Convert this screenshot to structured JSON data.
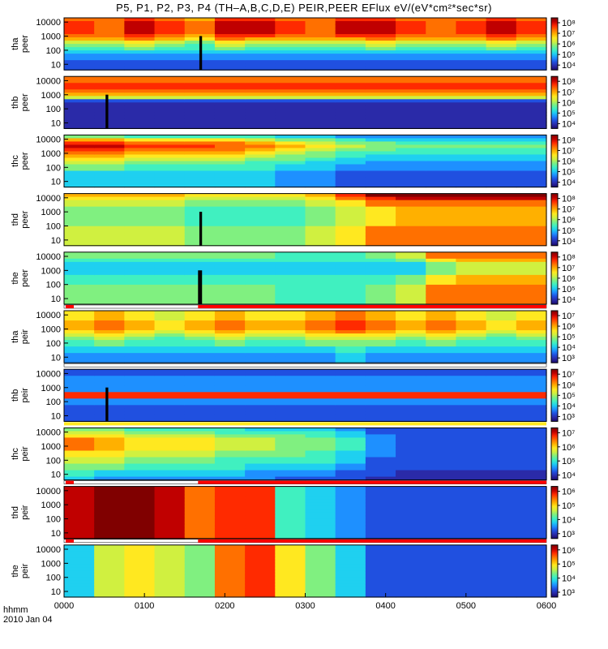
{
  "colors": {
    "background": "#ffffff",
    "axes": "#000000",
    "cmap": [
      "#1a0a6a",
      "#2a2aa8",
      "#2050e0",
      "#1e90ff",
      "#1fd0f0",
      "#40f0c0",
      "#80f080",
      "#d0f040",
      "#ffe820",
      "#ffb000",
      "#ff7000",
      "#ff2a00",
      "#c00000",
      "#800000"
    ],
    "bar_red": "#ff0000",
    "bar_white": "#ffffff",
    "bar_black": "#000000"
  },
  "chart_data": {
    "type": "heatmap",
    "title": "P5, P1, P2, P3, P4 (TH–A,B,C,D,E) PEIR,PEER EFlux eV/(eV*cm²*sec*sr)",
    "x_ticks": [
      "0000",
      "0100",
      "0200",
      "0300",
      "0400",
      "0500",
      "0600"
    ],
    "x_range_minutes": [
      0,
      360
    ],
    "x_label": "hhmm",
    "date_label": "2010 Jan 04",
    "y_scale": "log",
    "panels": [
      {
        "id": "tha-peer",
        "sc": "tha",
        "species": "peer",
        "ylabel_sc": "tha",
        "ylabel_sp": "peer",
        "yticks": [
          "10000",
          "1000",
          "100",
          "10"
        ],
        "cbar_ticks": [
          "10⁸",
          "10⁷",
          "10⁶",
          "10⁵",
          "10⁴"
        ],
        "profile": [
          10,
          11,
          11,
          11,
          11,
          10,
          9,
          7,
          6,
          5,
          4,
          3,
          3,
          2,
          2,
          2
        ],
        "time_var": [
          1,
          0.95,
          1.1,
          1,
          0.9,
          1.1,
          1.05,
          1,
          0.95,
          1.05,
          1.1,
          1,
          0.95,
          1,
          1.1,
          1
        ],
        "gap_minutes": [
          [
            101,
            103
          ]
        ],
        "bar": null
      },
      {
        "id": "thb-peer",
        "sc": "thb",
        "species": "peer",
        "ylabel_sc": "thb",
        "ylabel_sp": "peer",
        "yticks": [
          "10000",
          "1000",
          "100",
          "10"
        ],
        "cbar_ticks": [
          "10⁸",
          "10⁷",
          "10⁶",
          "10⁵",
          "10⁴"
        ],
        "profile": [
          10,
          10,
          11,
          11,
          10,
          9,
          7,
          2,
          1,
          1,
          1,
          1,
          1,
          1,
          1,
          1
        ],
        "time_var": [
          1,
          1,
          1,
          1,
          1,
          1,
          1,
          1,
          1,
          1,
          1,
          1,
          1,
          1,
          1,
          1
        ],
        "gap_minutes": [
          [
            31,
            33
          ]
        ],
        "bar": null
      },
      {
        "id": "thc-peer",
        "sc": "thc",
        "species": "peer",
        "ylabel_sc": "thc",
        "ylabel_sp": "peer",
        "yticks": [
          "10000",
          "1000",
          "100",
          "10"
        ],
        "cbar_ticks": [
          "10⁸",
          "10⁷",
          "10⁶",
          "10⁵",
          "10⁴"
        ],
        "profile": [
          5,
          8,
          10,
          11,
          10,
          9,
          8,
          7,
          6,
          5,
          5,
          4,
          4,
          4,
          4,
          4
        ],
        "time_var": [
          1.1,
          1.1,
          1,
          1,
          1,
          0.95,
          0.9,
          0.8,
          0.7,
          0.6,
          0.55,
          0.5,
          0.5,
          0.5,
          0.5,
          0.5
        ],
        "gap_minutes": [],
        "bar": null
      },
      {
        "id": "thd-peer",
        "sc": "thd",
        "species": "peer",
        "ylabel_sc": "thd",
        "ylabel_sp": "peer",
        "yticks": [
          "10000",
          "1000",
          "100",
          "10"
        ],
        "cbar_ticks": [
          "10⁸",
          "10⁷",
          "10⁶",
          "10⁵",
          "10⁴"
        ],
        "profile": [
          9,
          8,
          7,
          7,
          6,
          6,
          6,
          6,
          6,
          6,
          7,
          7,
          7,
          7,
          7,
          7
        ],
        "time_var": [
          1,
          1,
          1,
          0.95,
          0.9,
          0.9,
          0.9,
          0.9,
          0.95,
          1.2,
          1.4,
          1.45,
          1.45,
          1.45,
          1.45,
          1.45
        ],
        "gap_minutes": [
          [
            101,
            103
          ]
        ],
        "bar": null
      },
      {
        "id": "the-peer",
        "sc": "the",
        "species": "peer",
        "ylabel_sc": "the",
        "ylabel_sp": "peer",
        "yticks": [
          "10000",
          "1000",
          "100",
          "10"
        ],
        "cbar_ticks": [
          "10⁸",
          "10⁷",
          "10⁶",
          "10⁵",
          "10⁴"
        ],
        "profile": [
          6,
          6,
          5,
          4,
          4,
          4,
          4,
          5,
          5,
          5,
          6,
          6,
          6,
          6,
          6,
          6
        ],
        "time_var": [
          1,
          1,
          1,
          1,
          1,
          1,
          1,
          0.9,
          0.9,
          0.9,
          1,
          1.1,
          1.6,
          1.7,
          1.7,
          1.7
        ],
        "gap_minutes": [
          [
            100,
            103
          ]
        ],
        "bar": "red-split"
      },
      {
        "id": "tha-peir",
        "sc": "tha",
        "species": "peir",
        "ylabel_sc": "tha",
        "ylabel_sp": "peir",
        "yticks": [
          "10000",
          "1000",
          "100",
          "10"
        ],
        "cbar_ticks": [
          "10⁷",
          "10⁶",
          "10⁵",
          "10⁴",
          "10³"
        ],
        "profile": [
          8,
          8,
          8,
          9,
          9,
          9,
          8,
          7,
          6,
          5,
          5,
          4,
          4,
          3,
          3,
          3
        ],
        "time_var": [
          1,
          1.1,
          1,
          0.9,
          1,
          1.1,
          1,
          1,
          1.1,
          1.2,
          1.1,
          1,
          1.1,
          1,
          0.9,
          1
        ],
        "gap_minutes": [],
        "bar": "white-mid"
      },
      {
        "id": "thb-peir",
        "sc": "thb",
        "species": "peir",
        "ylabel_sc": "thb",
        "ylabel_sp": "peir",
        "yticks": [
          "10000",
          "1000",
          "100",
          "10"
        ],
        "cbar_ticks": [
          "10⁷",
          "10⁶",
          "10⁵",
          "10⁴",
          "10³"
        ],
        "profile": [
          2,
          2,
          3,
          3,
          3,
          3,
          3,
          11,
          11,
          3,
          3,
          2,
          2,
          2,
          2,
          2
        ],
        "time_var": [
          1,
          1,
          1,
          1,
          1,
          1,
          1,
          1,
          1,
          1,
          1,
          1,
          1,
          1,
          1,
          1
        ],
        "gap_minutes": [
          [
            31,
            33
          ]
        ],
        "bar": "yellow"
      },
      {
        "id": "thc-peir",
        "sc": "thc",
        "species": "peir",
        "ylabel_sc": "thc",
        "ylabel_sp": "peir",
        "yticks": [
          "10000",
          "1000",
          "100",
          "10"
        ],
        "cbar_ticks": [
          "10⁷",
          "10⁶",
          "10⁵",
          "10⁴"
        ],
        "profile": [
          5,
          6,
          7,
          8,
          8,
          8,
          8,
          7,
          7,
          6,
          6,
          5,
          5,
          4,
          4,
          3
        ],
        "time_var": [
          1.2,
          1.1,
          1,
          1,
          0.95,
          0.9,
          0.85,
          0.8,
          0.75,
          0.6,
          0.4,
          0.3,
          0.3,
          0.3,
          0.3,
          0.3
        ],
        "gap_minutes": [],
        "bar": "red-split"
      },
      {
        "id": "thd-peir",
        "sc": "thd",
        "species": "peir",
        "ylabel_sc": "thd",
        "ylabel_sp": "peir",
        "yticks": [
          "10000",
          "1000",
          "100",
          "10"
        ],
        "cbar_ticks": [
          "10⁶",
          "10⁵",
          "10⁴",
          "10³"
        ],
        "profile": [
          9,
          9,
          9,
          9,
          9,
          9,
          9,
          9,
          9,
          9,
          9,
          9,
          9,
          9,
          9,
          9
        ],
        "time_var": [
          1.3,
          1.4,
          1.5,
          1.3,
          1.1,
          1.25,
          1.2,
          0.5,
          0.4,
          0.3,
          0.25,
          0.25,
          0.25,
          0.25,
          0.25,
          0.25
        ],
        "gap_minutes": [],
        "bar": "red-split"
      },
      {
        "id": "the-peir",
        "sc": "the",
        "species": "peir",
        "ylabel_sc": "the",
        "ylabel_sp": "peir",
        "yticks": [
          "10000",
          "1000",
          "100",
          "10"
        ],
        "cbar_ticks": [
          "10⁶",
          "10⁵",
          "10⁴",
          "10³"
        ],
        "profile": [
          7,
          7,
          7,
          7,
          7,
          7,
          7,
          7,
          7,
          7,
          7,
          7,
          7,
          7,
          7,
          7
        ],
        "time_var": [
          0.6,
          1,
          1.2,
          1,
          0.8,
          1.4,
          1.5,
          1.2,
          0.8,
          0.5,
          0.35,
          0.3,
          0.3,
          0.3,
          0.3,
          0.3
        ],
        "gap_minutes": [],
        "bar": null
      }
    ]
  }
}
